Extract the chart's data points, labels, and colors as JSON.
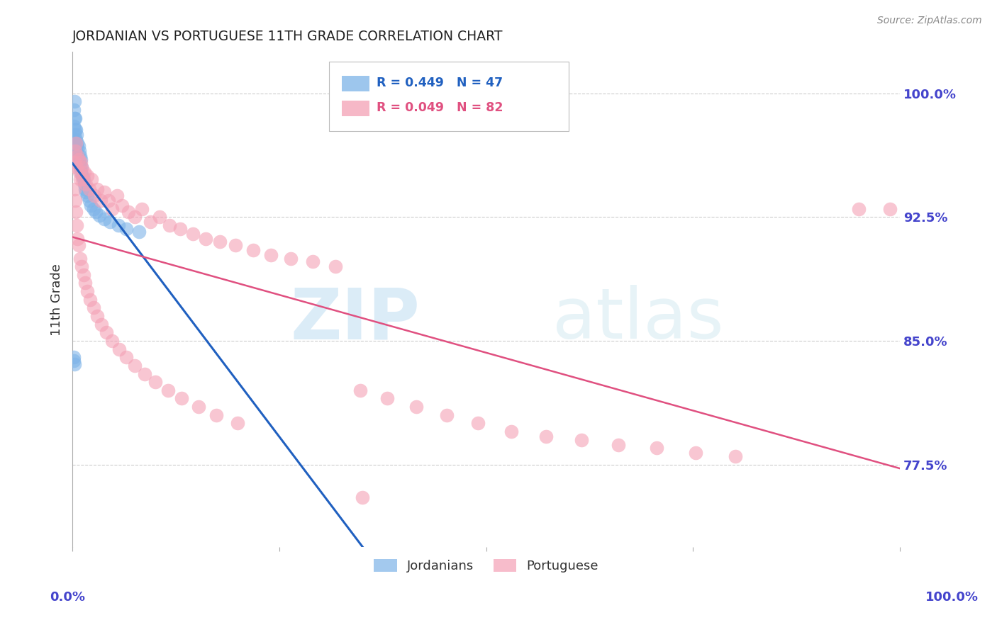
{
  "title": "JORDANIAN VS PORTUGUESE 11TH GRADE CORRELATION CHART",
  "source": "Source: ZipAtlas.com",
  "ylabel": "11th Grade",
  "ytick_labels": [
    "100.0%",
    "92.5%",
    "85.0%",
    "77.5%"
  ],
  "ytick_values": [
    1.0,
    0.925,
    0.85,
    0.775
  ],
  "xlim": [
    0.0,
    1.0
  ],
  "ylim": [
    0.725,
    1.025
  ],
  "legend_entries": [
    {
      "label": "R = 0.449   N = 47",
      "color": "#7db3e8"
    },
    {
      "label": "R = 0.049   N = 82",
      "color": "#f4a0b5"
    }
  ],
  "legend_label_jordanians": "Jordanians",
  "legend_label_portuguese": "Portuguese",
  "jordan_color": "#7db3e8",
  "portuguese_color": "#f4a0b5",
  "jordan_line_color": "#2060c0",
  "portuguese_line_color": "#e05080",
  "watermark_zip": "ZIP",
  "watermark_atlas": "atlas",
  "background_color": "#ffffff",
  "grid_color": "#cccccc",
  "axis_label_color": "#4444cc",
  "title_color": "#222222",
  "jordanians_x": [
    0.001,
    0.001,
    0.001,
    0.002,
    0.002,
    0.002,
    0.002,
    0.003,
    0.003,
    0.003,
    0.003,
    0.004,
    0.004,
    0.004,
    0.005,
    0.005,
    0.005,
    0.006,
    0.006,
    0.007,
    0.007,
    0.008,
    0.008,
    0.009,
    0.009,
    0.01,
    0.01,
    0.011,
    0.012,
    0.013,
    0.014,
    0.015,
    0.016,
    0.018,
    0.02,
    0.022,
    0.025,
    0.028,
    0.032,
    0.038,
    0.045,
    0.055,
    0.065,
    0.08,
    0.001,
    0.001,
    0.002
  ],
  "jordanians_y": [
    0.99,
    0.98,
    0.972,
    0.995,
    0.985,
    0.975,
    0.968,
    0.985,
    0.978,
    0.97,
    0.962,
    0.978,
    0.972,
    0.965,
    0.975,
    0.968,
    0.96,
    0.97,
    0.963,
    0.968,
    0.96,
    0.965,
    0.958,
    0.962,
    0.955,
    0.96,
    0.952,
    0.955,
    0.95,
    0.948,
    0.945,
    0.942,
    0.94,
    0.938,
    0.935,
    0.932,
    0.93,
    0.928,
    0.926,
    0.924,
    0.922,
    0.92,
    0.918,
    0.916,
    0.84,
    0.838,
    0.836
  ],
  "portuguese_x": [
    0.002,
    0.003,
    0.004,
    0.005,
    0.006,
    0.007,
    0.008,
    0.009,
    0.01,
    0.011,
    0.012,
    0.014,
    0.016,
    0.018,
    0.02,
    0.023,
    0.026,
    0.03,
    0.034,
    0.038,
    0.043,
    0.048,
    0.054,
    0.06,
    0.067,
    0.075,
    0.084,
    0.094,
    0.105,
    0.117,
    0.13,
    0.145,
    0.161,
    0.178,
    0.197,
    0.218,
    0.24,
    0.264,
    0.29,
    0.318,
    0.002,
    0.003,
    0.004,
    0.005,
    0.006,
    0.007,
    0.009,
    0.011,
    0.013,
    0.015,
    0.018,
    0.021,
    0.025,
    0.03,
    0.035,
    0.041,
    0.048,
    0.056,
    0.065,
    0.075,
    0.087,
    0.1,
    0.115,
    0.132,
    0.152,
    0.174,
    0.199,
    0.348,
    0.38,
    0.415,
    0.452,
    0.49,
    0.53,
    0.572,
    0.615,
    0.66,
    0.706,
    0.753,
    0.801,
    0.95,
    0.988,
    0.35
  ],
  "portuguese_y": [
    0.958,
    0.965,
    0.97,
    0.955,
    0.962,
    0.96,
    0.952,
    0.948,
    0.958,
    0.955,
    0.948,
    0.952,
    0.945,
    0.95,
    0.942,
    0.948,
    0.938,
    0.942,
    0.935,
    0.94,
    0.935,
    0.93,
    0.938,
    0.932,
    0.928,
    0.925,
    0.93,
    0.922,
    0.925,
    0.92,
    0.918,
    0.915,
    0.912,
    0.91,
    0.908,
    0.905,
    0.902,
    0.9,
    0.898,
    0.895,
    0.942,
    0.935,
    0.928,
    0.92,
    0.912,
    0.908,
    0.9,
    0.895,
    0.89,
    0.885,
    0.88,
    0.875,
    0.87,
    0.865,
    0.86,
    0.855,
    0.85,
    0.845,
    0.84,
    0.835,
    0.83,
    0.825,
    0.82,
    0.815,
    0.81,
    0.805,
    0.8,
    0.82,
    0.815,
    0.81,
    0.805,
    0.8,
    0.795,
    0.792,
    0.79,
    0.787,
    0.785,
    0.782,
    0.78,
    0.93,
    0.93,
    0.755
  ]
}
